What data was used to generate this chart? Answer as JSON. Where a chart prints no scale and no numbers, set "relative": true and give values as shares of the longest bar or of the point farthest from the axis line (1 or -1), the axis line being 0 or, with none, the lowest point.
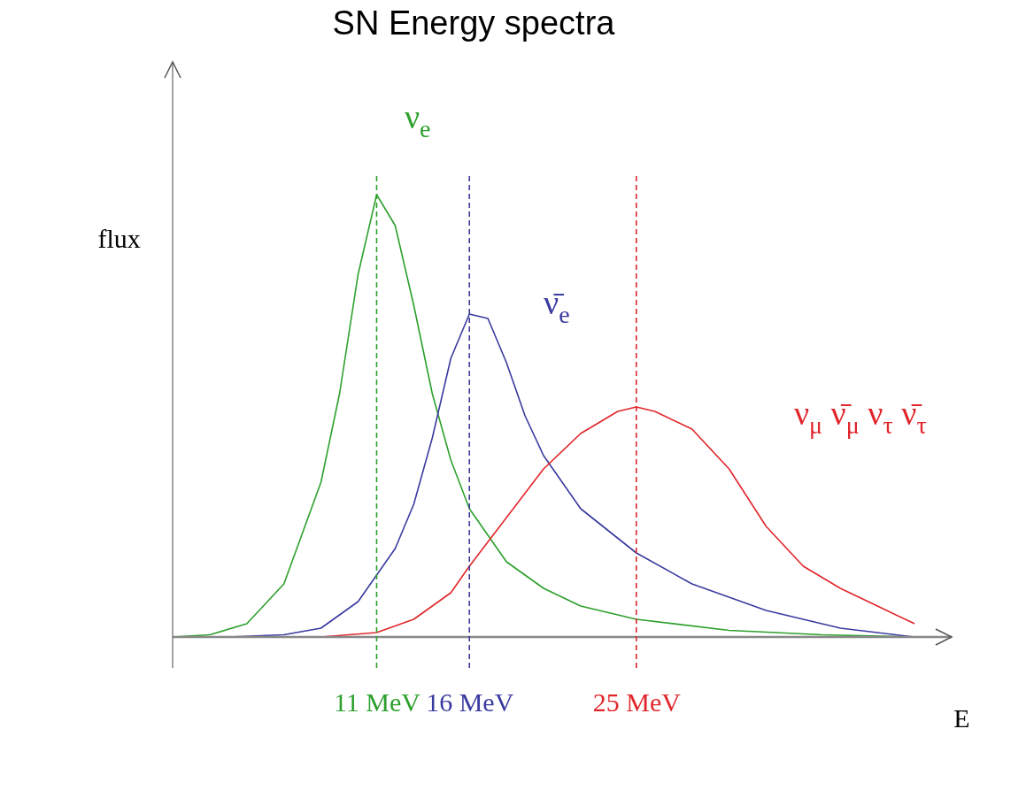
{
  "chart_data": {
    "type": "line",
    "title": "SN Energy spectra",
    "xlabel": "E",
    "ylabel": "flux",
    "relative": true,
    "xlim": [
      0,
      42
    ],
    "xticks": [
      {
        "value": 11,
        "label": "11 MeV"
      },
      {
        "value": 16,
        "label": "16 MeV"
      },
      {
        "value": 25,
        "label": "25 MeV"
      }
    ],
    "tick_labels": "x",
    "grid": false,
    "legend": false,
    "marker": "none",
    "line_style": "solid",
    "series": [
      {
        "name": "ν$_{e}$",
        "color": "#2ca02c",
        "x": [
          0,
          2,
          4,
          6,
          8,
          9,
          10,
          11,
          12,
          13,
          14,
          15,
          16,
          18,
          20,
          22,
          25,
          30,
          35,
          40
        ],
        "values": [
          0,
          0.005,
          0.03,
          0.12,
          0.35,
          0.55,
          0.82,
          1.0,
          0.93,
          0.75,
          0.55,
          0.4,
          0.29,
          0.17,
          0.11,
          0.07,
          0.04,
          0.015,
          0.005,
          0
        ]
      },
      {
        "name": "ν̄$_{e}$",
        "color": "#3a3aa0",
        "x": [
          3,
          6,
          8,
          10,
          12,
          13,
          14,
          15,
          16,
          17,
          18,
          19,
          20,
          22,
          25,
          28,
          32,
          36,
          40
        ],
        "values": [
          0,
          0.005,
          0.02,
          0.08,
          0.2,
          0.3,
          0.45,
          0.63,
          0.73,
          0.72,
          0.62,
          0.5,
          0.41,
          0.29,
          0.19,
          0.12,
          0.06,
          0.02,
          0
        ]
      },
      {
        "name": "ν$_{μ}$  ν̄$_{μ}$  ν$_{τ}$  ν̄$_{τ}$",
        "color": "#e0262b",
        "x": [
          8,
          11,
          13,
          15,
          16,
          18,
          20,
          22,
          24,
          25,
          26,
          28,
          30,
          32,
          34,
          36,
          38,
          40
        ],
        "values": [
          0,
          0.01,
          0.04,
          0.1,
          0.16,
          0.27,
          0.38,
          0.46,
          0.51,
          0.52,
          0.51,
          0.47,
          0.38,
          0.25,
          0.16,
          0.11,
          0.07,
          0.03
        ]
      }
    ],
    "ref_lines": [
      {
        "axis": "x",
        "value": 11,
        "color": "#2ca02c",
        "line_style": "dashed"
      },
      {
        "axis": "x",
        "value": 16,
        "color": "#3a3aa0",
        "line_style": "dashed"
      },
      {
        "axis": "x",
        "value": 25,
        "color": "#e0262b",
        "line_style": "dashed"
      }
    ]
  }
}
